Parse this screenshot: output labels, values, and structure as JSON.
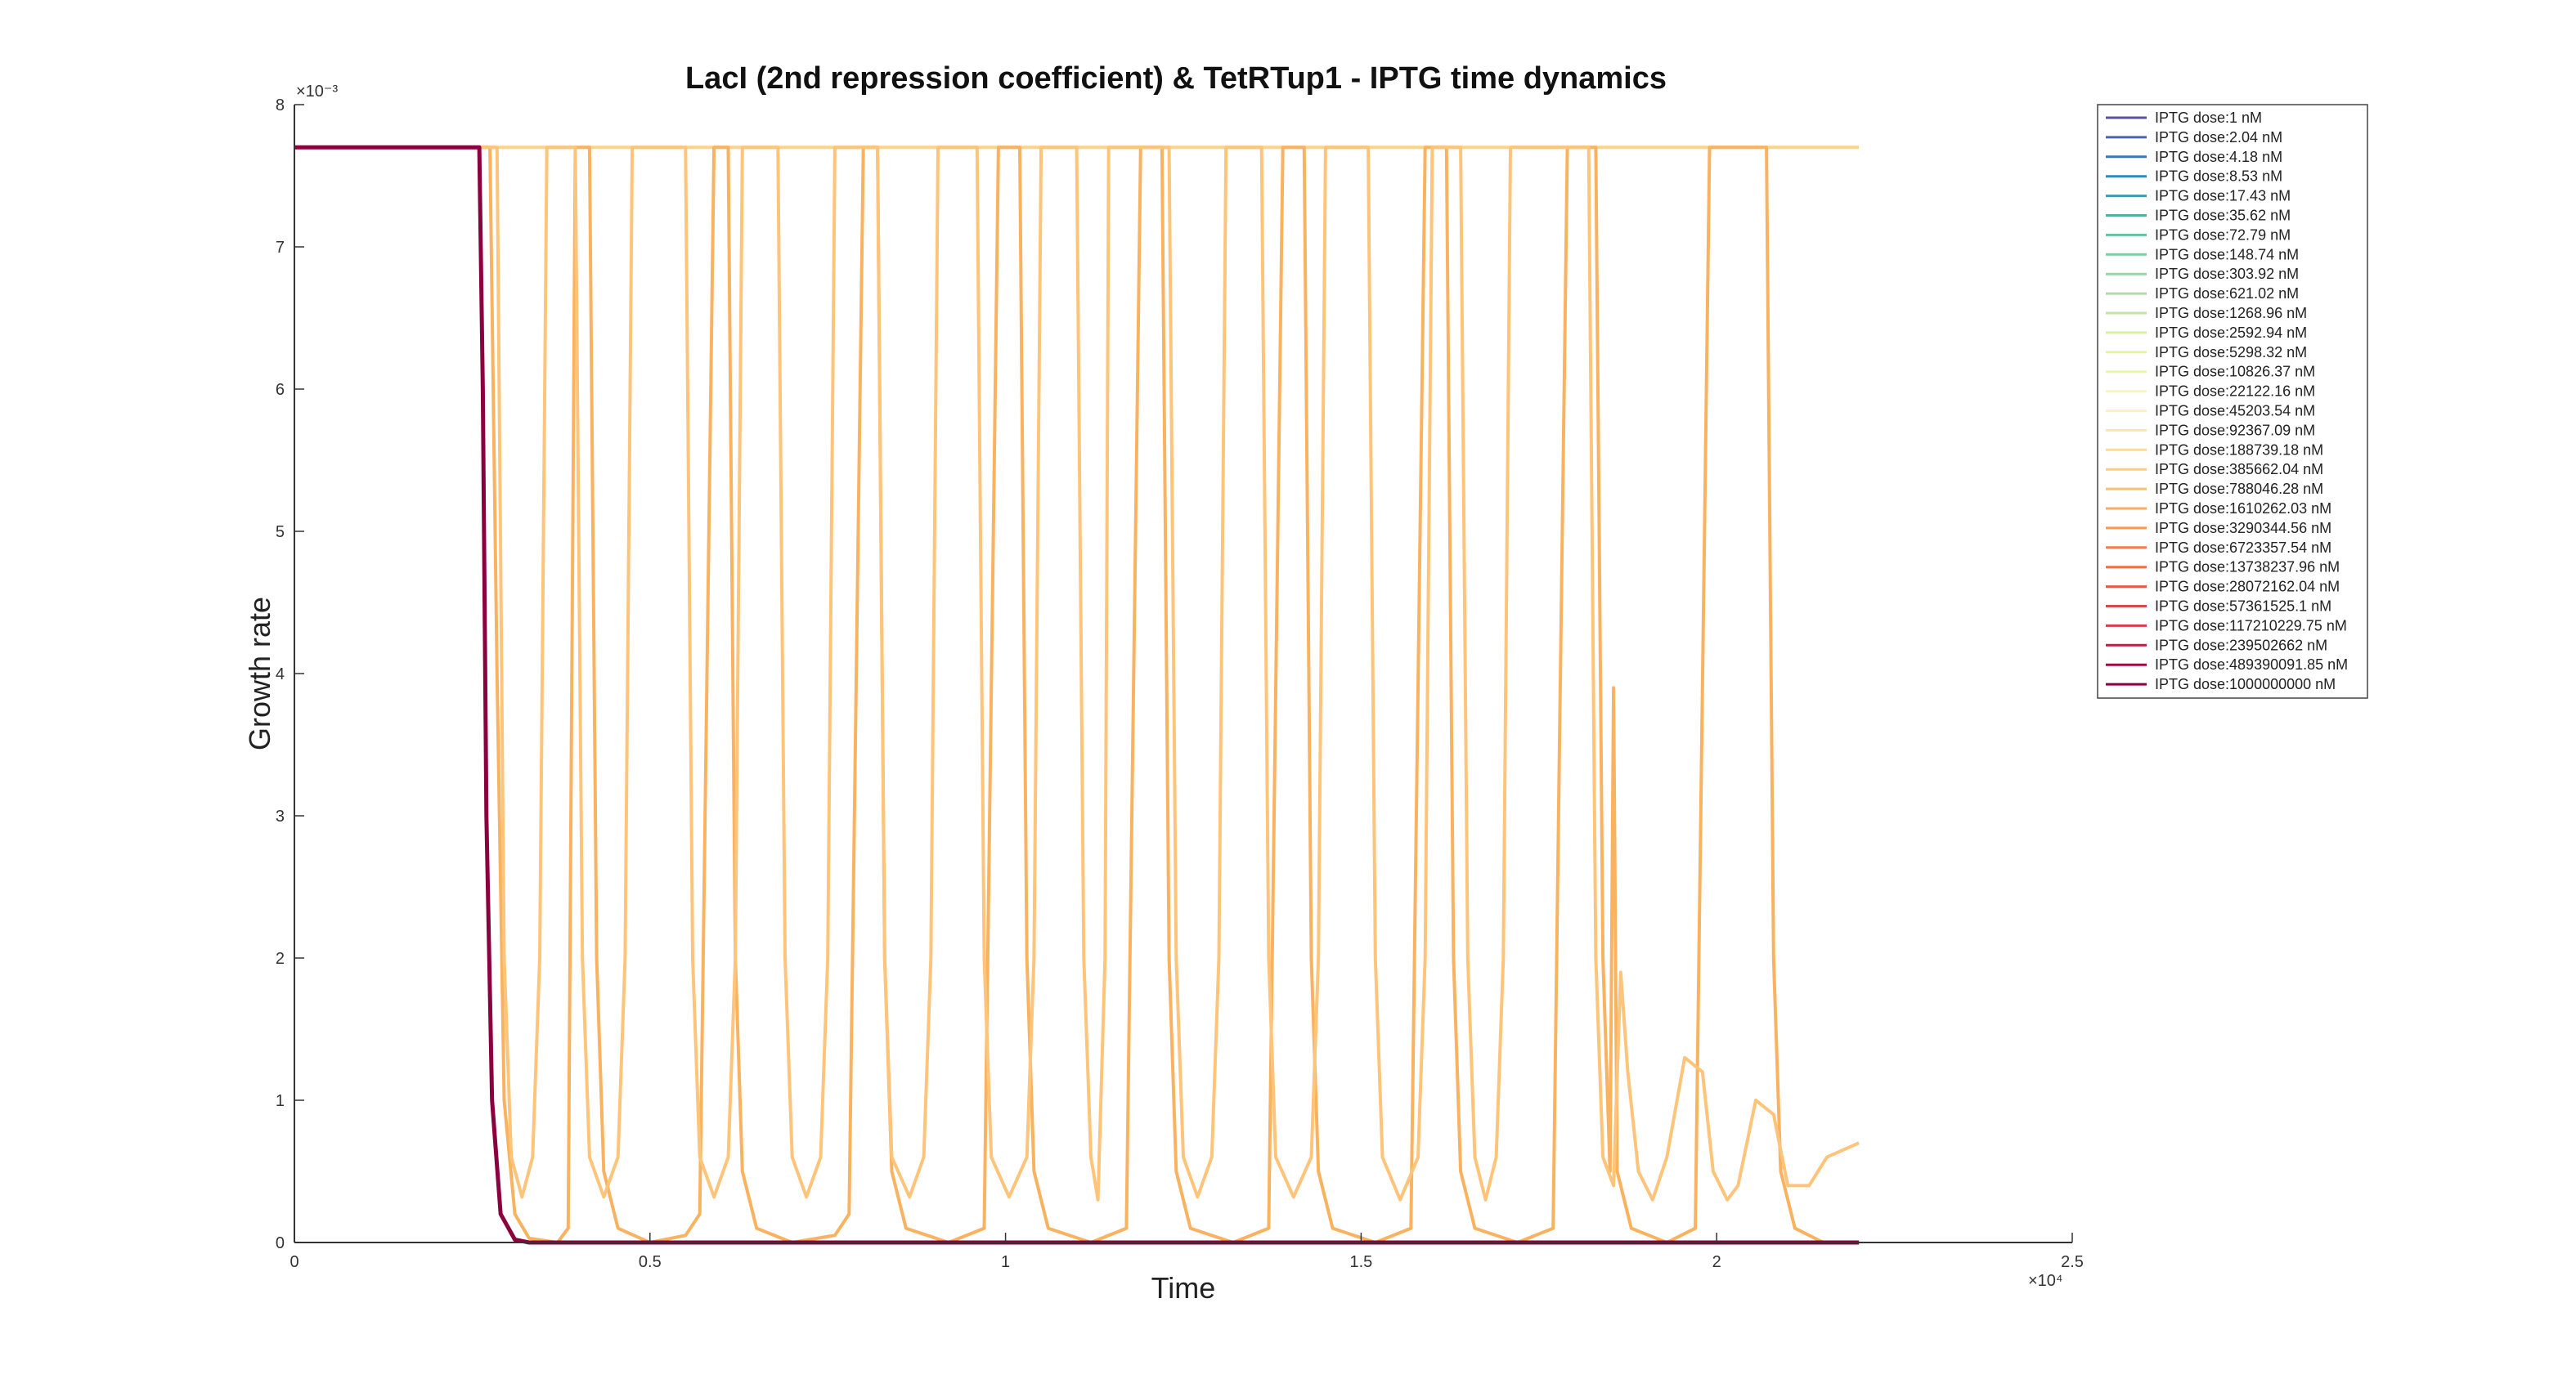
{
  "chart_data": {
    "type": "line",
    "title": "LacI (2nd repression coefficient) & TetRTup1 - IPTG time dynamics",
    "xlabel": "Time",
    "ylabel": "Growth rate",
    "x_multiplier_label": "×10⁴",
    "y_multiplier_label": "×10⁻³",
    "xlim": [
      0,
      25000
    ],
    "ylim": [
      0,
      0.008
    ],
    "x_ticks": [
      0,
      5000,
      10000,
      15000,
      20000,
      25000
    ],
    "x_tick_labels": [
      "0",
      "0.5",
      "1",
      "1.5",
      "2",
      "2.5"
    ],
    "y_ticks": [
      0,
      0.001,
      0.002,
      0.003,
      0.004,
      0.005,
      0.006,
      0.007,
      0.008
    ],
    "y_tick_labels": [
      "0",
      "1",
      "2",
      "3",
      "4",
      "5",
      "6",
      "7",
      "8"
    ],
    "grid": false,
    "legend_position": "top-right",
    "series": [
      {
        "name": "IPTG dose:1 nM",
        "color": "#5e4fa2"
      },
      {
        "name": "IPTG dose:2.04 nM",
        "color": "#4c63ac"
      },
      {
        "name": "IPTG dose:4.18 nM",
        "color": "#3b77b5"
      },
      {
        "name": "IPTG dose:8.53 nM",
        "color": "#3288bd"
      },
      {
        "name": "IPTG dose:17.43 nM",
        "color": "#3d9cb4"
      },
      {
        "name": "IPTG dose:35.62 nM",
        "color": "#52afa8"
      },
      {
        "name": "IPTG dose:72.79 nM",
        "color": "#66c2a5"
      },
      {
        "name": "IPTG dose:148.74 nM",
        "color": "#80cca4"
      },
      {
        "name": "IPTG dose:303.92 nM",
        "color": "#99d5a4"
      },
      {
        "name": "IPTG dose:621.02 nM",
        "color": "#abdda4"
      },
      {
        "name": "IPTG dose:1268.96 nM",
        "color": "#c2e6a0"
      },
      {
        "name": "IPTG dose:2592.94 nM",
        "color": "#d9ef9b"
      },
      {
        "name": "IPTG dose:5298.32 nM",
        "color": "#e6f598"
      },
      {
        "name": "IPTG dose:10826.37 nM",
        "color": "#eef6a7"
      },
      {
        "name": "IPTG dose:22122.16 nM",
        "color": "#f6f8b4"
      },
      {
        "name": "IPTG dose:45203.54 nM",
        "color": "#fef3b0"
      },
      {
        "name": "IPTG dose:92367.09 nM",
        "color": "#fee89b"
      },
      {
        "name": "IPTG dose:188739.18 nM",
        "color": "#fedc8a"
      },
      {
        "name": "IPTG dose:385662.04 nM",
        "color": "#fece7c"
      },
      {
        "name": "IPTG dose:788046.28 nM",
        "color": "#fdbf6f"
      },
      {
        "name": "IPTG dose:1610262.03 nM",
        "color": "#fdad61"
      },
      {
        "name": "IPTG dose:3290344.56 nM",
        "color": "#fa9656"
      },
      {
        "name": "IPTG dose:6723357.54 nM",
        "color": "#f67d4a"
      },
      {
        "name": "IPTG dose:13738237.96 nM",
        "color": "#f46d43"
      },
      {
        "name": "IPTG dose:28072162.04 nM",
        "color": "#e75a47"
      },
      {
        "name": "IPTG dose:57361525.1 nM",
        "color": "#da464c"
      },
      {
        "name": "IPTG dose:117210229.75 nM",
        "color": "#d53e4f"
      },
      {
        "name": "IPTG dose:239502662 nM",
        "color": "#bb2148"
      },
      {
        "name": "IPTG dose:489390091.85 nM",
        "color": "#a10b43"
      },
      {
        "name": "IPTG dose:1000000000 nM",
        "color": "#8b003e"
      }
    ],
    "curves": {
      "baseline_plateau": {
        "description_color": "#fdd38b",
        "points": [
          [
            2600,
            0.0077
          ],
          [
            22000,
            0.0077
          ]
        ]
      },
      "oscillating_high": {
        "color": "#fdc47a",
        "points": [
          [
            2600,
            0.0077
          ],
          [
            2850,
            0.0077
          ],
          [
            2950,
            0.002
          ],
          [
            3050,
            0.0006
          ],
          [
            3200,
            0.00032
          ],
          [
            3350,
            0.0006
          ],
          [
            3450,
            0.002
          ],
          [
            3550,
            0.0077
          ],
          [
            3950,
            0.0077
          ],
          [
            4050,
            0.002
          ],
          [
            4150,
            0.0006
          ],
          [
            4350,
            0.00032
          ],
          [
            4550,
            0.0006
          ],
          [
            4650,
            0.002
          ],
          [
            4750,
            0.0077
          ],
          [
            5500,
            0.0077
          ],
          [
            5600,
            0.002
          ],
          [
            5700,
            0.0006
          ],
          [
            5900,
            0.00032
          ],
          [
            6100,
            0.0006
          ],
          [
            6200,
            0.002
          ],
          [
            6300,
            0.0077
          ],
          [
            6800,
            0.0077
          ],
          [
            6900,
            0.002
          ],
          [
            7000,
            0.0006
          ],
          [
            7200,
            0.00032
          ],
          [
            7400,
            0.0006
          ],
          [
            7500,
            0.002
          ],
          [
            7600,
            0.0077
          ],
          [
            8200,
            0.0077
          ],
          [
            8300,
            0.002
          ],
          [
            8400,
            0.0006
          ],
          [
            8650,
            0.00032
          ],
          [
            8850,
            0.0006
          ],
          [
            8950,
            0.002
          ],
          [
            9050,
            0.0077
          ],
          [
            9600,
            0.0077
          ],
          [
            9700,
            0.002
          ],
          [
            9800,
            0.0006
          ],
          [
            10050,
            0.00032
          ],
          [
            10300,
            0.0006
          ],
          [
            10400,
            0.002
          ],
          [
            10500,
            0.0077
          ],
          [
            11000,
            0.0077
          ],
          [
            11100,
            0.002
          ],
          [
            11200,
            0.0006
          ],
          [
            11300,
            0.0003
          ],
          [
            11400,
            0.002
          ],
          [
            11450,
            0.0077
          ],
          [
            12300,
            0.0077
          ],
          [
            12400,
            0.002
          ],
          [
            12500,
            0.0006
          ],
          [
            12700,
            0.00032
          ],
          [
            12900,
            0.0006
          ],
          [
            13000,
            0.002
          ],
          [
            13100,
            0.0077
          ],
          [
            13600,
            0.0077
          ],
          [
            13700,
            0.002
          ],
          [
            13800,
            0.0006
          ],
          [
            14050,
            0.00032
          ],
          [
            14300,
            0.0006
          ],
          [
            14400,
            0.002
          ],
          [
            14500,
            0.0077
          ],
          [
            15100,
            0.0077
          ],
          [
            15200,
            0.002
          ],
          [
            15300,
            0.0006
          ],
          [
            15550,
            0.0003
          ],
          [
            15800,
            0.0006
          ],
          [
            15900,
            0.002
          ],
          [
            16000,
            0.0077
          ],
          [
            16400,
            0.0077
          ],
          [
            16500,
            0.002
          ],
          [
            16600,
            0.0006
          ],
          [
            16750,
            0.0003
          ],
          [
            16900,
            0.0006
          ],
          [
            17000,
            0.002
          ],
          [
            17100,
            0.0077
          ],
          [
            18200,
            0.0077
          ],
          [
            18300,
            0.002
          ],
          [
            18400,
            0.0006
          ],
          [
            18550,
            0.0004
          ],
          [
            18650,
            0.0019
          ],
          [
            18750,
            0.0012
          ],
          [
            18900,
            0.0005
          ],
          [
            19100,
            0.0003
          ],
          [
            19300,
            0.0006
          ],
          [
            19550,
            0.0013
          ],
          [
            19800,
            0.0012
          ],
          [
            19950,
            0.0005
          ],
          [
            20150,
            0.0003
          ],
          [
            20300,
            0.0004
          ],
          [
            20550,
            0.001
          ],
          [
            20800,
            0.0009
          ],
          [
            21000,
            0.0004
          ],
          [
            21300,
            0.0004
          ],
          [
            21550,
            0.0006
          ],
          [
            22000,
            0.0007
          ]
        ]
      },
      "oscillating_low": {
        "color": "#f9b25f",
        "points": [
          [
            2600,
            0.0077
          ],
          [
            2750,
            0.0077
          ],
          [
            2850,
            0.004
          ],
          [
            2950,
            0.001
          ],
          [
            3100,
            0.0002
          ],
          [
            3300,
            3e-05
          ],
          [
            3700,
            0.0
          ],
          [
            3850,
            0.0001
          ],
          [
            3950,
            0.0077
          ],
          [
            4150,
            0.0077
          ],
          [
            4250,
            0.002
          ],
          [
            4350,
            0.0005
          ],
          [
            4550,
            0.0001
          ],
          [
            5000,
            0.0
          ],
          [
            5500,
            5e-05
          ],
          [
            5700,
            0.0002
          ],
          [
            5900,
            0.0077
          ],
          [
            6100,
            0.0077
          ],
          [
            6200,
            0.002
          ],
          [
            6300,
            0.0005
          ],
          [
            6500,
            0.0001
          ],
          [
            7000,
            0.0
          ],
          [
            7600,
            5e-05
          ],
          [
            7800,
            0.0002
          ],
          [
            8000,
            0.0077
          ],
          [
            8200,
            0.0077
          ],
          [
            8300,
            0.002
          ],
          [
            8400,
            0.0005
          ],
          [
            8600,
            0.0001
          ],
          [
            9200,
            0.0
          ],
          [
            9700,
            0.0001
          ],
          [
            9900,
            0.0077
          ],
          [
            10200,
            0.0077
          ],
          [
            10300,
            0.002
          ],
          [
            10400,
            0.0005
          ],
          [
            10600,
            0.0001
          ],
          [
            11200,
            0.0
          ],
          [
            11700,
            0.0001
          ],
          [
            11900,
            0.0077
          ],
          [
            12200,
            0.0077
          ],
          [
            12300,
            0.002
          ],
          [
            12400,
            0.0005
          ],
          [
            12600,
            0.0001
          ],
          [
            13200,
            0.0
          ],
          [
            13700,
            0.0001
          ],
          [
            13900,
            0.0077
          ],
          [
            14200,
            0.0077
          ],
          [
            14300,
            0.002
          ],
          [
            14400,
            0.0005
          ],
          [
            14600,
            0.0001
          ],
          [
            15200,
            0.0
          ],
          [
            15700,
            0.0001
          ],
          [
            15900,
            0.0077
          ],
          [
            16200,
            0.0077
          ],
          [
            16300,
            0.002
          ],
          [
            16400,
            0.0005
          ],
          [
            16600,
            0.0001
          ],
          [
            17200,
            0.0
          ],
          [
            17700,
            0.0001
          ],
          [
            17900,
            0.0077
          ],
          [
            18300,
            0.0077
          ],
          [
            18400,
            0.002
          ],
          [
            18500,
            0.0005
          ],
          [
            18550,
            0.0039
          ],
          [
            18600,
            0.0005
          ],
          [
            18800,
            0.0001
          ],
          [
            19300,
            0.0
          ],
          [
            19700,
            0.0001
          ],
          [
            19900,
            0.0077
          ],
          [
            20700,
            0.0077
          ],
          [
            20800,
            0.002
          ],
          [
            20900,
            0.0005
          ],
          [
            21100,
            0.0001
          ],
          [
            21500,
            0.0
          ],
          [
            22000,
            0.0
          ]
        ]
      },
      "decay": {
        "color": "#8b003e",
        "points": [
          [
            0,
            0.0077
          ],
          [
            2600,
            0.0077
          ],
          [
            2650,
            0.006
          ],
          [
            2700,
            0.003
          ],
          [
            2780,
            0.001
          ],
          [
            2900,
            0.0002
          ],
          [
            3100,
            2e-05
          ],
          [
            3300,
            0.0
          ],
          [
            22000,
            0.0
          ]
        ]
      }
    }
  }
}
